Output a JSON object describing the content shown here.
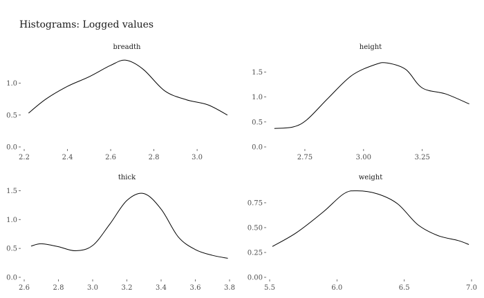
{
  "title": "Histograms: Logged values",
  "chart_data": [
    {
      "type": "line",
      "panel": "breadth",
      "xlim": [
        2.2,
        3.15
      ],
      "ylim": [
        0,
        1.45
      ],
      "xticks": [
        "2.2",
        "2.4",
        "2.6",
        "2.8",
        "3.0"
      ],
      "yticks": [
        "0.0",
        "0.5",
        "1.0"
      ],
      "x": [
        2.22,
        2.3,
        2.4,
        2.5,
        2.6,
        2.67,
        2.75,
        2.85,
        2.95,
        3.05,
        3.14
      ],
      "y": [
        0.53,
        0.75,
        0.95,
        1.1,
        1.28,
        1.36,
        1.22,
        0.88,
        0.74,
        0.66,
        0.5
      ]
    },
    {
      "type": "line",
      "panel": "height",
      "xlim": [
        2.6,
        3.46
      ],
      "ylim": [
        0,
        1.85
      ],
      "xticks": [
        "2.75",
        "3.00",
        "3.25"
      ],
      "yticks": [
        "0.0",
        "0.5",
        "1.0",
        "1.5"
      ],
      "x": [
        2.62,
        2.7,
        2.76,
        2.85,
        2.95,
        3.05,
        3.1,
        3.18,
        3.25,
        3.35,
        3.45
      ],
      "y": [
        0.37,
        0.4,
        0.55,
        0.98,
        1.43,
        1.65,
        1.68,
        1.55,
        1.18,
        1.06,
        0.86
      ]
    },
    {
      "type": "line",
      "panel": "thick",
      "xlim": [
        2.6,
        3.8
      ],
      "ylim": [
        0,
        1.6
      ],
      "xticks": [
        "2.6",
        "2.8",
        "3.0",
        "3.2",
        "3.4",
        "3.6",
        "3.8"
      ],
      "yticks": [
        "0.0",
        "0.5",
        "1.0",
        "1.5"
      ],
      "x": [
        2.64,
        2.7,
        2.8,
        2.9,
        3.0,
        3.1,
        3.2,
        3.3,
        3.4,
        3.5,
        3.6,
        3.7,
        3.79
      ],
      "y": [
        0.54,
        0.58,
        0.53,
        0.46,
        0.55,
        0.92,
        1.33,
        1.45,
        1.18,
        0.7,
        0.48,
        0.38,
        0.33
      ]
    },
    {
      "type": "line",
      "panel": "weight",
      "xlim": [
        5.5,
        7.0
      ],
      "ylim": [
        0,
        0.93
      ],
      "xticks": [
        "5.5",
        "6.0",
        "6.5",
        "7.0"
      ],
      "yticks": [
        "0.00",
        "0.25",
        "0.50",
        "0.75"
      ],
      "x": [
        5.52,
        5.7,
        5.9,
        6.05,
        6.15,
        6.3,
        6.45,
        6.6,
        6.75,
        6.9,
        6.98
      ],
      "y": [
        0.31,
        0.45,
        0.66,
        0.84,
        0.87,
        0.84,
        0.74,
        0.53,
        0.42,
        0.37,
        0.33
      ]
    }
  ]
}
